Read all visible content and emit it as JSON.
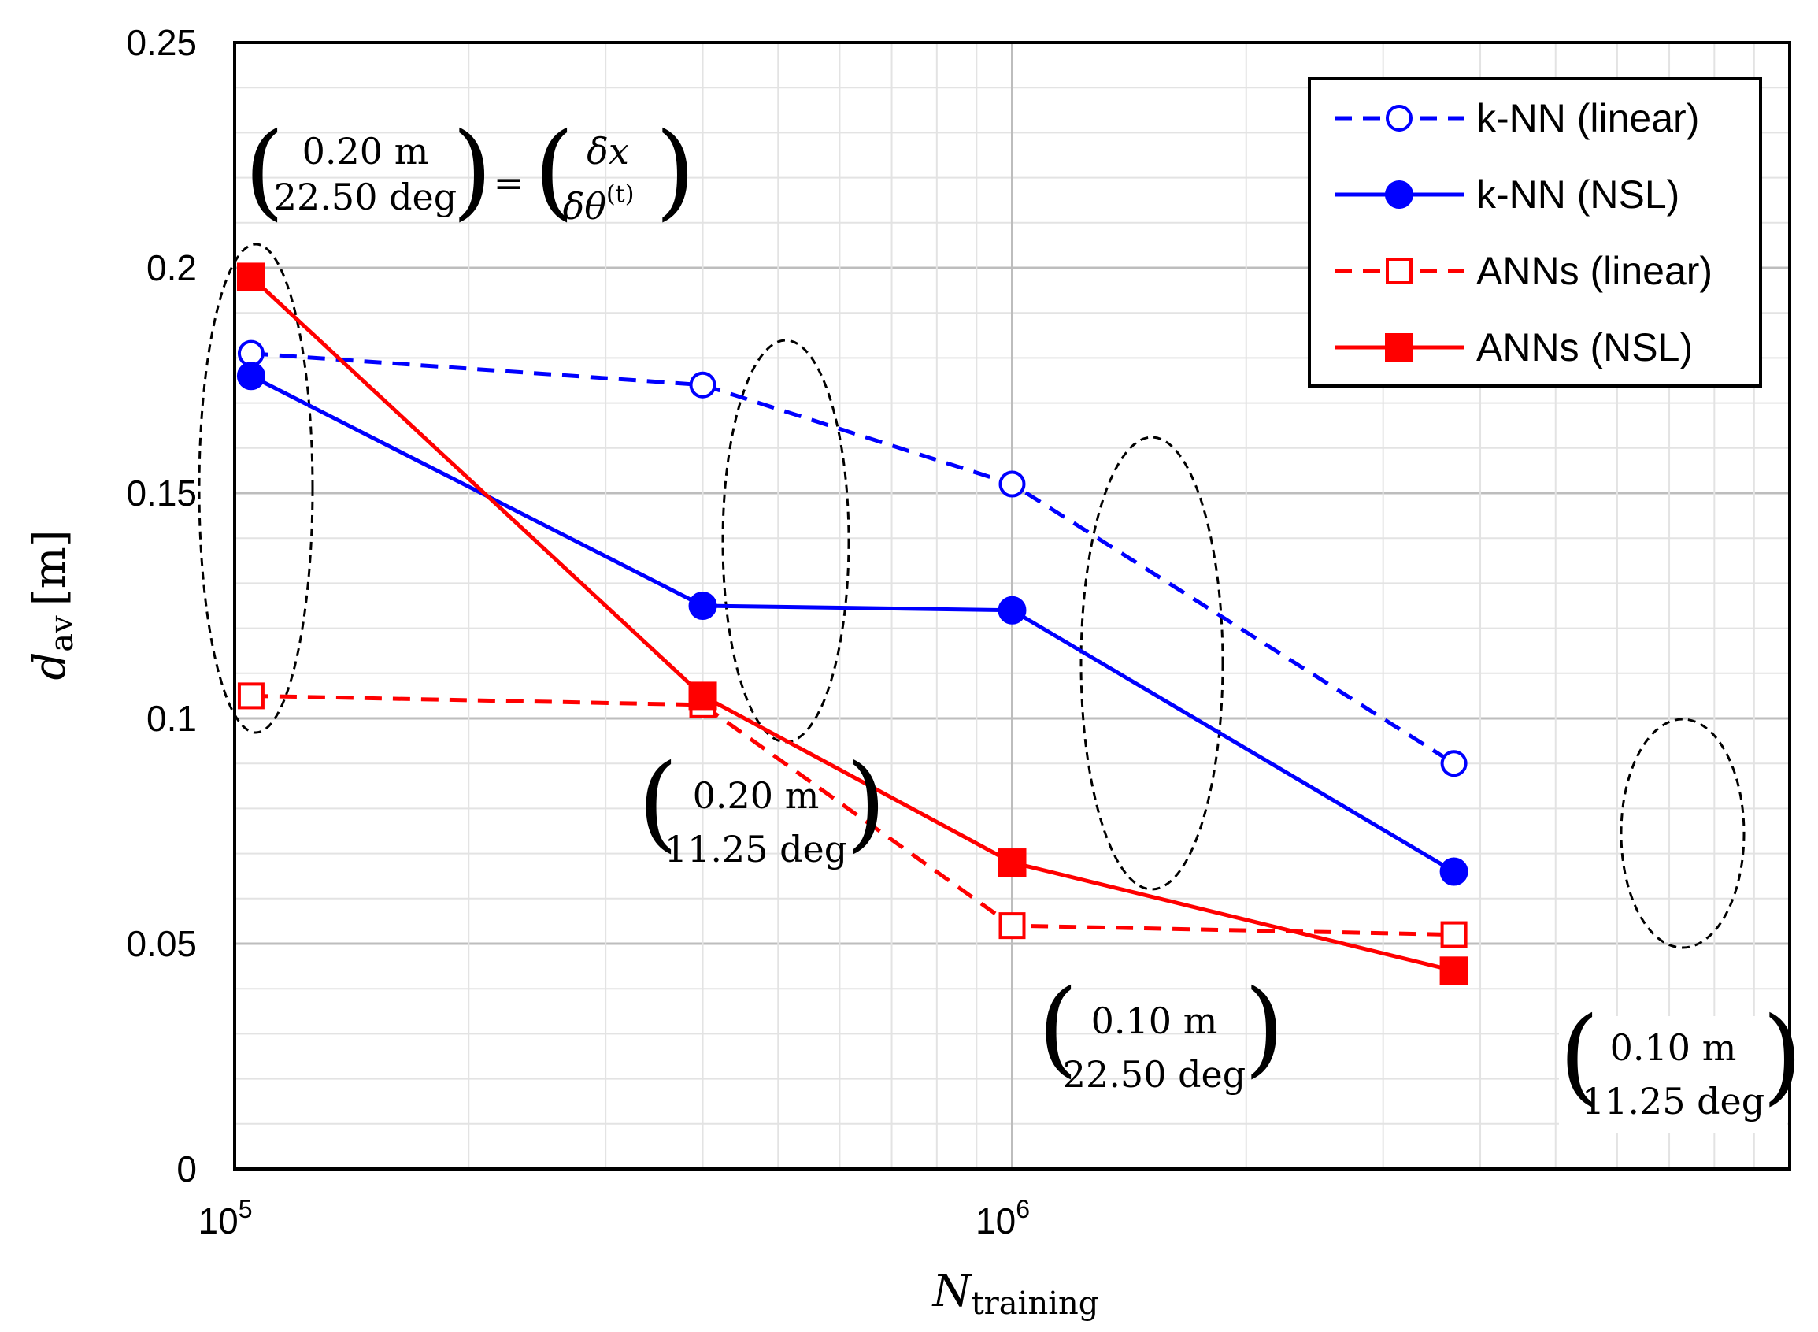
{
  "chart_data": {
    "type": "line",
    "title": "",
    "xlabel": {
      "main": "N",
      "sub": "training"
    },
    "ylabel": {
      "main": "d",
      "sub": "av",
      "unit": "[m]"
    },
    "xscale": "log",
    "xlim": [
      100000,
      10000000
    ],
    "ylim": [
      0,
      0.25
    ],
    "x_ticks": [
      {
        "base": "10",
        "exp": "5",
        "value": 100000
      },
      {
        "base": "10",
        "exp": "6",
        "value": 1000000
      }
    ],
    "y_ticks": [
      {
        "label": "0",
        "value": 0
      },
      {
        "label": "0.05",
        "value": 0.05
      },
      {
        "label": "0.1",
        "value": 0.1
      },
      {
        "label": "0.15",
        "value": 0.15
      },
      {
        "label": "0.2",
        "value": 0.2
      },
      {
        "label": "0.25",
        "value": 0.25
      }
    ],
    "grid": true,
    "legend_position": "top-right",
    "x": [
      105000,
      400000,
      1000000,
      3700000
    ],
    "series": [
      {
        "name": "k-NN (linear)",
        "color": "#0000ff",
        "dashed": true,
        "marker": "circle",
        "filled": false,
        "values": [
          0.181,
          0.174,
          0.152,
          0.09
        ]
      },
      {
        "name": "k-NN (NSL)",
        "color": "#0000ff",
        "dashed": false,
        "marker": "circle",
        "filled": true,
        "values": [
          0.176,
          0.125,
          0.124,
          0.066
        ]
      },
      {
        "name": "ANNs (linear)",
        "color": "#ff0000",
        "dashed": true,
        "marker": "square",
        "filled": false,
        "values": [
          0.105,
          0.103,
          0.054,
          0.052
        ]
      },
      {
        "name": "ANNs (NSL)",
        "color": "#ff0000",
        "dashed": false,
        "marker": "square",
        "filled": true,
        "values": [
          0.198,
          0.105,
          0.068,
          0.044
        ]
      }
    ],
    "annotations": [
      {
        "id": "g1",
        "line1": "0.20 m",
        "line2": "22.50 deg",
        "eq": "=",
        "sym1": "δx",
        "sym2": "δθ",
        "sym2_sup": "(t)"
      },
      {
        "id": "g2",
        "line1": "0.20 m",
        "line2": "11.25 deg"
      },
      {
        "id": "g3",
        "line1": "0.10 m",
        "line2": "22.50 deg"
      },
      {
        "id": "g4",
        "line1": "0.10 m",
        "line2": "11.25 deg"
      }
    ]
  }
}
